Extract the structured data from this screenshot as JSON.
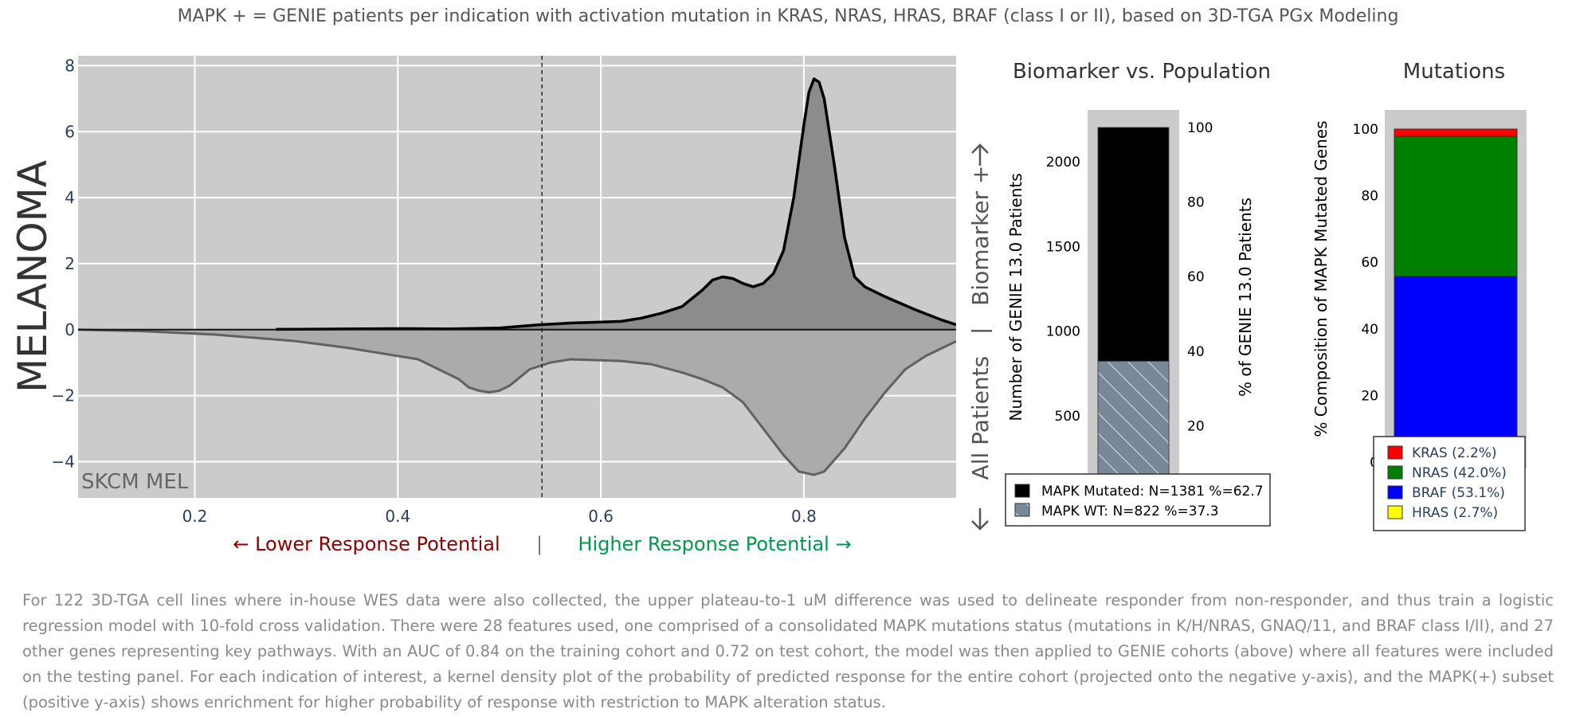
{
  "title": "MAPK + = GENIE patients per indication with activation mutation in KRAS, NRAS, HRAS, BRAF (class I or II), based on 3D-TGA PGx Modeling",
  "indication": "MELANOMA",
  "chart_data": [
    {
      "type": "area",
      "name": "kde",
      "corner_label": "SKCM MEL",
      "xlim": [
        0.085,
        0.95
      ],
      "ylim": [
        -5.1,
        8.3
      ],
      "x_ticks": [
        0.2,
        0.4,
        0.6,
        0.8
      ],
      "y_ticks": [
        -4,
        -2,
        0,
        2,
        4,
        6,
        8
      ],
      "x_tick_labels": [
        "0.2",
        "0.4",
        "0.6",
        "0.8"
      ],
      "y_tick_labels": [
        "−4",
        "−2",
        "0",
        "2",
        "4",
        "6",
        "8"
      ],
      "threshold_x": 0.542,
      "series": [
        {
          "name": "MAPK(+) subset",
          "color": "#000000",
          "fill": "#8c8c8c",
          "points": [
            [
              0.28,
              0.01
            ],
            [
              0.35,
              0.02
            ],
            [
              0.4,
              0.03
            ],
            [
              0.45,
              0.02
            ],
            [
              0.5,
              0.05
            ],
            [
              0.54,
              0.15
            ],
            [
              0.57,
              0.2
            ],
            [
              0.62,
              0.25
            ],
            [
              0.64,
              0.35
            ],
            [
              0.66,
              0.5
            ],
            [
              0.68,
              0.7
            ],
            [
              0.7,
              1.2
            ],
            [
              0.71,
              1.5
            ],
            [
              0.72,
              1.6
            ],
            [
              0.73,
              1.55
            ],
            [
              0.74,
              1.4
            ],
            [
              0.75,
              1.3
            ],
            [
              0.76,
              1.4
            ],
            [
              0.77,
              1.7
            ],
            [
              0.78,
              2.4
            ],
            [
              0.79,
              4.0
            ],
            [
              0.8,
              6.2
            ],
            [
              0.805,
              7.2
            ],
            [
              0.81,
              7.6
            ],
            [
              0.815,
              7.5
            ],
            [
              0.82,
              7.0
            ],
            [
              0.83,
              5.0
            ],
            [
              0.84,
              2.8
            ],
            [
              0.85,
              1.6
            ],
            [
              0.86,
              1.3
            ],
            [
              0.88,
              1.0
            ],
            [
              0.91,
              0.6
            ],
            [
              0.935,
              0.3
            ],
            [
              0.95,
              0.15
            ]
          ]
        },
        {
          "name": "entire cohort",
          "color": "#616161",
          "fill": "#ababab",
          "points": [
            [
              0.085,
              0.0
            ],
            [
              0.15,
              -0.05
            ],
            [
              0.22,
              -0.15
            ],
            [
              0.3,
              -0.35
            ],
            [
              0.35,
              -0.55
            ],
            [
              0.39,
              -0.75
            ],
            [
              0.42,
              -0.9
            ],
            [
              0.44,
              -1.2
            ],
            [
              0.46,
              -1.5
            ],
            [
              0.47,
              -1.75
            ],
            [
              0.48,
              -1.85
            ],
            [
              0.49,
              -1.9
            ],
            [
              0.5,
              -1.85
            ],
            [
              0.51,
              -1.7
            ],
            [
              0.52,
              -1.45
            ],
            [
              0.53,
              -1.2
            ],
            [
              0.55,
              -1.0
            ],
            [
              0.57,
              -0.9
            ],
            [
              0.62,
              -0.95
            ],
            [
              0.65,
              -1.05
            ],
            [
              0.68,
              -1.3
            ],
            [
              0.7,
              -1.5
            ],
            [
              0.72,
              -1.75
            ],
            [
              0.74,
              -2.2
            ],
            [
              0.76,
              -3.0
            ],
            [
              0.78,
              -3.8
            ],
            [
              0.795,
              -4.3
            ],
            [
              0.81,
              -4.4
            ],
            [
              0.82,
              -4.3
            ],
            [
              0.84,
              -3.6
            ],
            [
              0.86,
              -2.7
            ],
            [
              0.88,
              -1.9
            ],
            [
              0.9,
              -1.2
            ],
            [
              0.92,
              -0.8
            ],
            [
              0.94,
              -0.5
            ],
            [
              0.95,
              -0.35
            ]
          ]
        }
      ]
    },
    {
      "type": "bar",
      "name": "biomarker",
      "title": "Biomarker vs. Population",
      "ylabel": "Number of GENIE 13.0 Patients",
      "ylabel_right": "% of GENIE 13.0 Patients",
      "ylim": [
        0,
        2203
      ],
      "y_ticks": [
        0,
        500,
        1000,
        1500,
        2000
      ],
      "y_tick_labels": [
        "0",
        "500",
        "1000",
        "1500",
        "2000"
      ],
      "y2_ticks": [
        0,
        20,
        40,
        60,
        80,
        100
      ],
      "y2_tick_labels": [
        "0",
        "20",
        "40",
        "60",
        "80",
        "100"
      ],
      "series": [
        {
          "name": "MAPK WT",
          "value": 822,
          "percent": 37.3,
          "color": "#778899",
          "pattern": "hatch",
          "legend": "MAPK WT: N=822 %=37.3"
        },
        {
          "name": "MAPK Mutated",
          "value": 1381,
          "percent": 62.7,
          "color": "#000000",
          "legend": "MAPK Mutated: N=1381 %=62.7"
        }
      ]
    },
    {
      "type": "bar",
      "name": "mutations",
      "title": "Mutations",
      "ylabel": "% Composition of MAPK Mutated Genes",
      "ylim": [
        0,
        100
      ],
      "y_ticks": [
        0,
        20,
        40,
        60,
        80,
        100
      ],
      "y_tick_labels": [
        "0",
        "20",
        "40",
        "60",
        "80",
        "100"
      ],
      "series": [
        {
          "name": "HRAS",
          "value": 2.7,
          "color": "#ffff00",
          "legend": "HRAS (2.7%)"
        },
        {
          "name": "BRAF",
          "value": 53.1,
          "color": "#0000ff",
          "legend": "BRAF (53.1%)"
        },
        {
          "name": "NRAS",
          "value": 42.0,
          "color": "#008000",
          "legend": "NRAS (42.0%)"
        },
        {
          "name": "KRAS",
          "value": 2.2,
          "color": "#ff0000",
          "legend": "KRAS (2.2%)"
        }
      ]
    }
  ],
  "axis_annotations": {
    "lower": "← Lower Response Potential",
    "separator": "|",
    "higher": "Higher Response Potential →",
    "vertical": "All Patients   |   Biomarker +",
    "arrow_up": "→",
    "arrow_down": "→",
    "lower_color": "#8b0000",
    "higher_color": "#00994c"
  },
  "caption": "For 122 3D-TGA cell lines where in-house WES data were also collected, the upper plateau-to-1 uM difference was used to delineate responder from non-responder, and thus train a logistic regression model with 10-fold cross validation. There were 28 features used, one comprised of a consolidated MAPK mutations status (mutations in K/H/NRAS, GNAQ/11, and BRAF class I/II), and 27 other genes representing key pathways. With an AUC of 0.84 on the training cohort and 0.72 on test cohort, the model was then applied to GENIE cohorts (above) where all features were included on the testing panel. For each indication of interest, a kernel density plot of the probability of predicted response for the entire cohort (projected onto the negative y-axis), and the MAPK(+) subset (positive y-axis) shows enrichment for higher probability of response with restriction to MAPK alteration status."
}
